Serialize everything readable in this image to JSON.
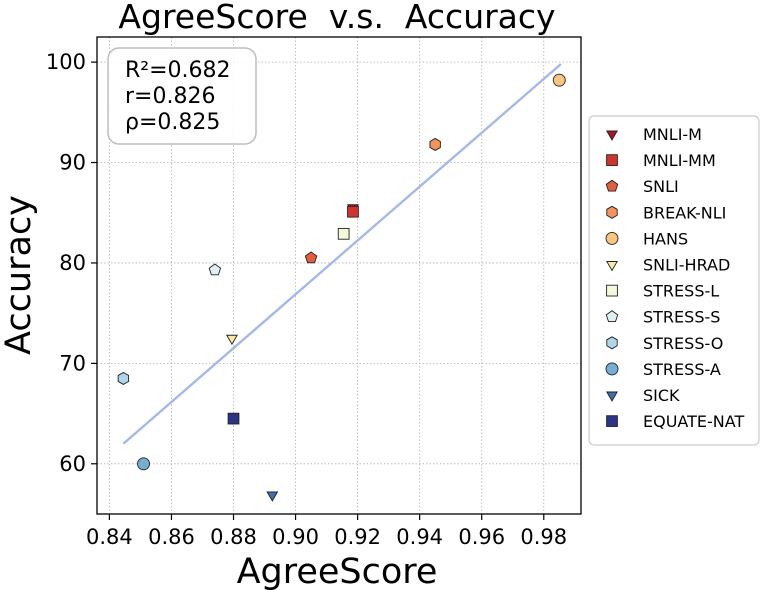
{
  "chart_data": {
    "type": "scatter",
    "title": "AgreeScore  v.s.  Accuracy",
    "xlabel": "AgreeScore",
    "ylabel": "Accuracy",
    "xlim": [
      0.836,
      0.992
    ],
    "ylim": [
      55,
      102.5
    ],
    "xticks": [
      0.84,
      0.86,
      0.88,
      0.9,
      0.92,
      0.94,
      0.96,
      0.98
    ],
    "xtick_labels": [
      "0.84",
      "0.86",
      "0.88",
      "0.90",
      "0.92",
      "0.94",
      "0.96",
      "0.98"
    ],
    "yticks": [
      60,
      70,
      80,
      90,
      100
    ],
    "ytick_labels": [
      "60",
      "70",
      "80",
      "90",
      "100"
    ],
    "grid": true,
    "legend_position": "outside-right",
    "stats": [
      "R²=0.682",
      "r=0.826",
      "ρ=0.825"
    ],
    "fit_line": {
      "x": [
        0.8445,
        0.9855
      ],
      "y": [
        62.0,
        99.8
      ],
      "color": "#a4b9e9"
    },
    "series": [
      {
        "name": "MNLI-M",
        "marker": "triangle-down",
        "color": "#a8152b",
        "points": [
          [
            0.9185,
            85.5
          ]
        ]
      },
      {
        "name": "MNLI-MM",
        "marker": "square",
        "color": "#d0342c",
        "points": [
          [
            0.9185,
            85.1
          ]
        ]
      },
      {
        "name": "SNLI",
        "marker": "pentagon",
        "color": "#e55c3e",
        "points": [
          [
            0.905,
            80.5
          ]
        ]
      },
      {
        "name": "BREAK-NLI",
        "marker": "hexagon",
        "color": "#f3945a",
        "points": [
          [
            0.945,
            91.8
          ]
        ]
      },
      {
        "name": "HANS",
        "marker": "circle",
        "color": "#fbc47f",
        "points": [
          [
            0.985,
            98.2
          ]
        ]
      },
      {
        "name": "SNLI-HRAD",
        "marker": "triangle-down",
        "color": "#fde8a4",
        "points": [
          [
            0.8795,
            72.5
          ]
        ]
      },
      {
        "name": "STRESS-L",
        "marker": "square",
        "color": "#f3f9d8",
        "points": [
          [
            0.9155,
            82.9
          ]
        ]
      },
      {
        "name": "STRESS-S",
        "marker": "pentagon",
        "color": "#ddf0f5",
        "points": [
          [
            0.874,
            79.3
          ]
        ]
      },
      {
        "name": "STRESS-O",
        "marker": "hexagon",
        "color": "#b0d6ea",
        "points": [
          [
            0.8445,
            68.5
          ]
        ]
      },
      {
        "name": "STRESS-A",
        "marker": "circle",
        "color": "#74aed3",
        "points": [
          [
            0.851,
            60.0
          ]
        ]
      },
      {
        "name": "SICK",
        "marker": "triangle-down",
        "color": "#3d6eb0",
        "points": [
          [
            0.8925,
            56.9
          ]
        ]
      },
      {
        "name": "EQUATE-NAT",
        "marker": "square",
        "color": "#2a3489",
        "points": [
          [
            0.88,
            64.5
          ]
        ]
      }
    ]
  }
}
